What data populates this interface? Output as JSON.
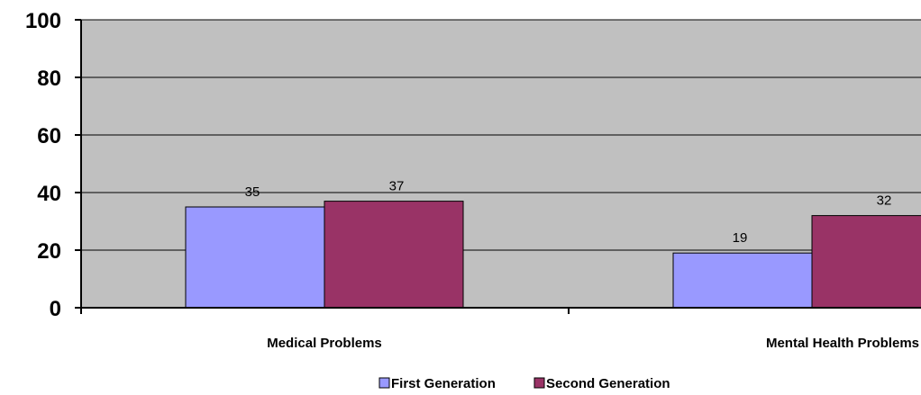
{
  "chart_data": {
    "type": "bar",
    "categories": [
      "Medical Problems",
      "Mental Health Problems"
    ],
    "series": [
      {
        "name": "First Generation",
        "values": [
          35,
          19
        ],
        "color": "#9999ff"
      },
      {
        "name": "Second Generation",
        "values": [
          37,
          32
        ],
        "color": "#993366"
      }
    ],
    "ylim": [
      0,
      100
    ],
    "yticks": [
      0,
      20,
      40,
      60,
      80,
      100
    ],
    "grid": true,
    "plot_background": "#c0c0c0",
    "legend_position": "bottom-center",
    "title": "",
    "xlabel": "",
    "ylabel": ""
  }
}
